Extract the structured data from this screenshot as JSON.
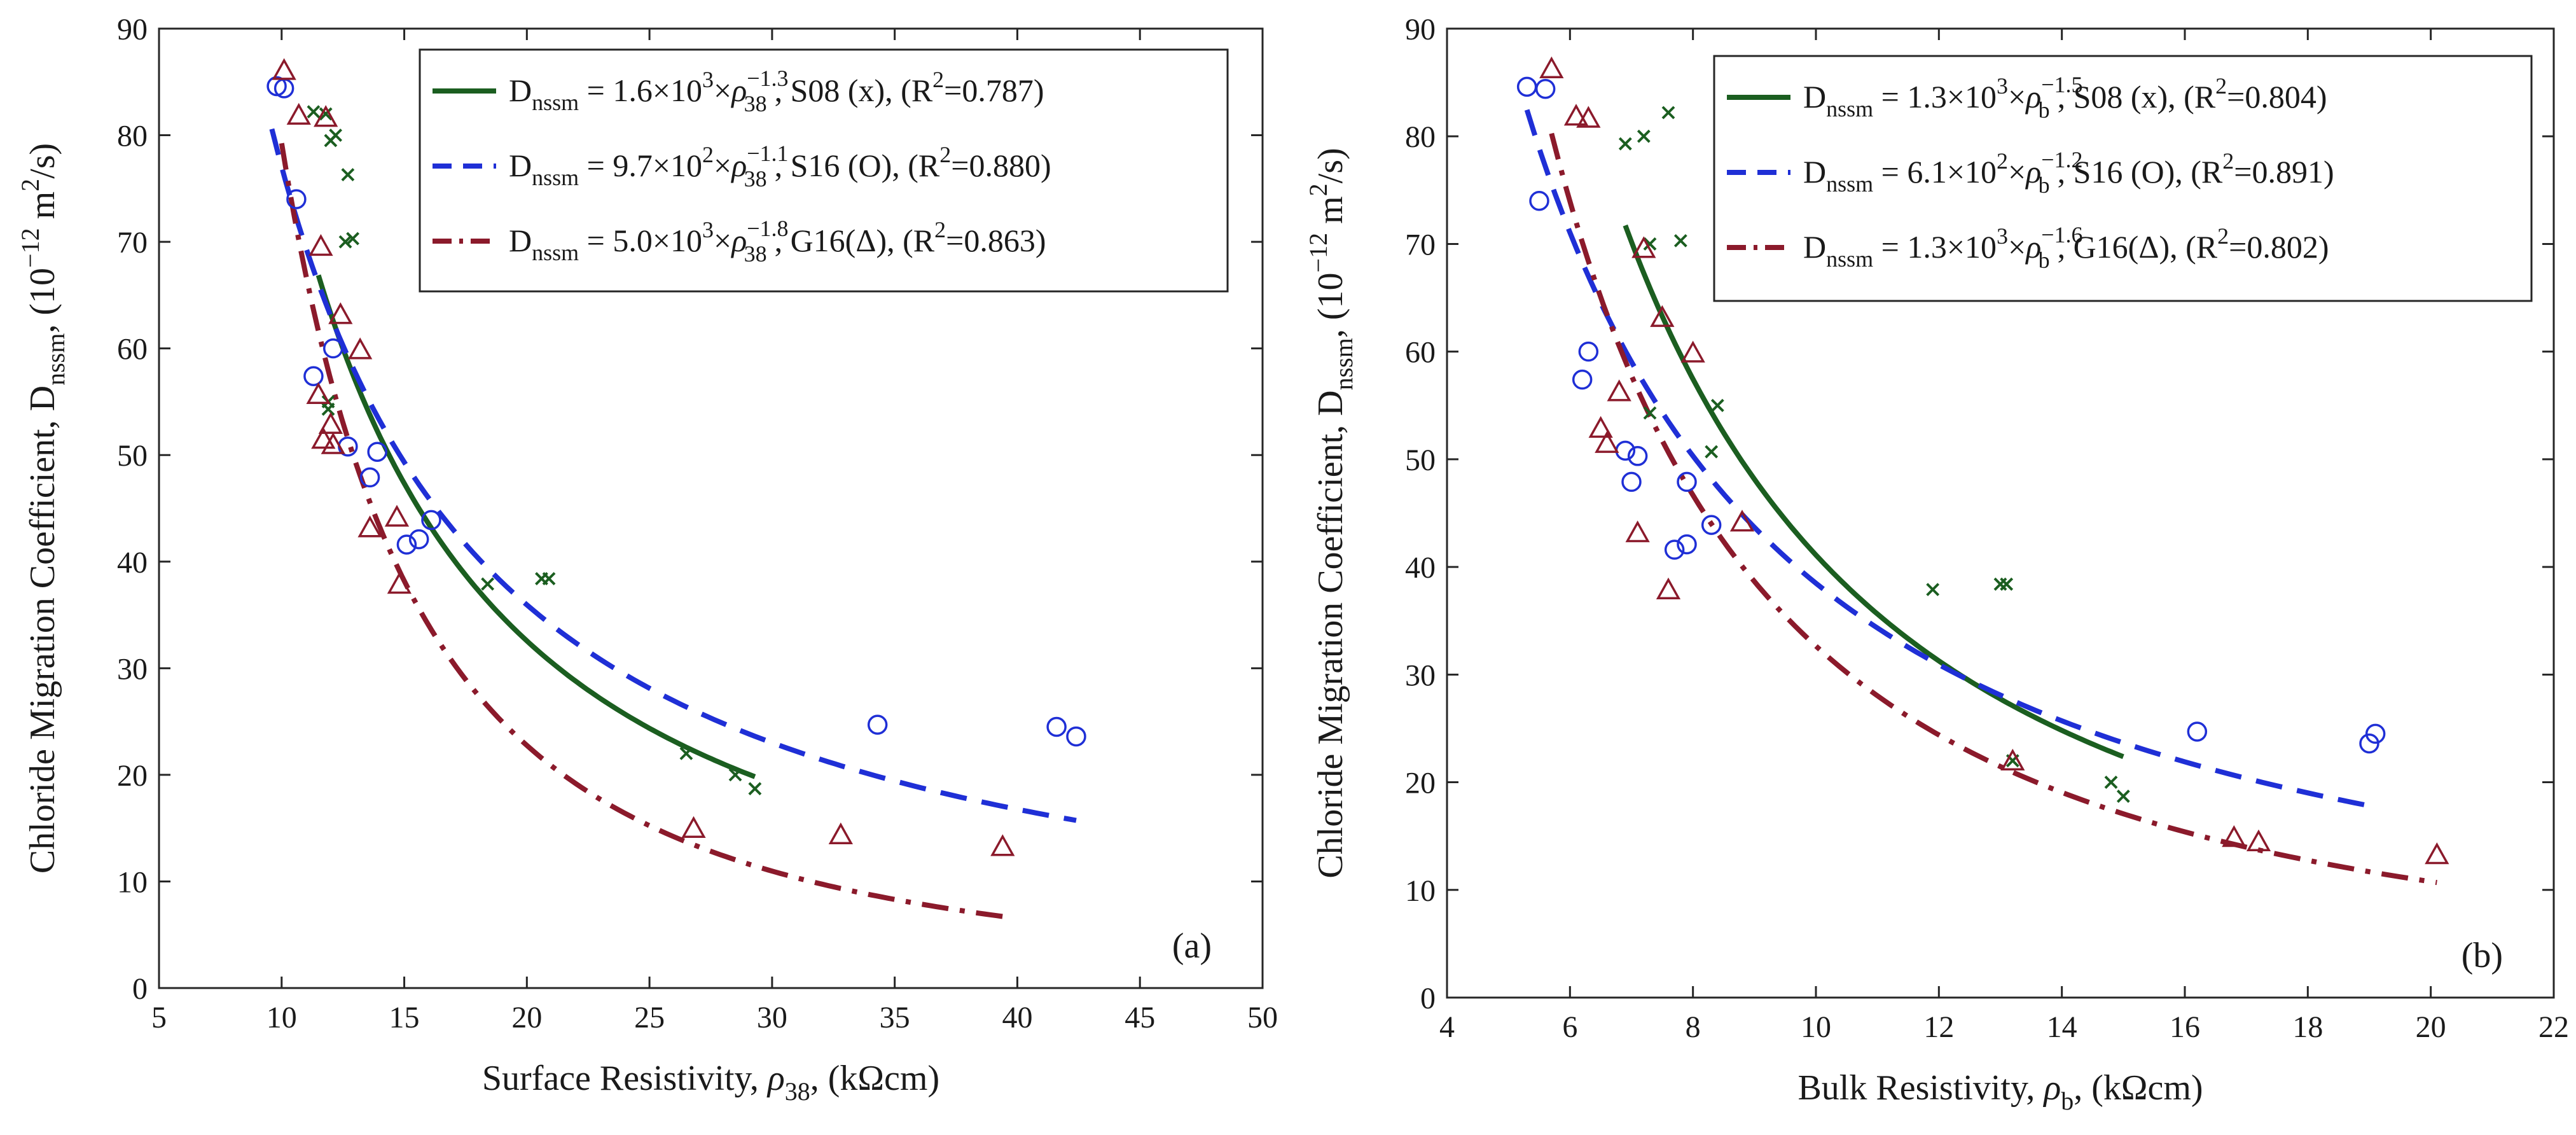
{
  "chart_data": [
    {
      "type": "scatter",
      "panel_label": "(a)",
      "xlabel": {
        "main": "Surface Resistivity, ",
        "sym": "ρ",
        "sub": "38",
        "tail": ", (kΩcm)"
      },
      "ylabel": {
        "main": "Chloride Migration Coefficient, D",
        "sub": "nssm",
        "mid": ", (10",
        "sup": "−12",
        "unit": " m",
        "sup2": "2",
        "tail": "/s)"
      },
      "xlim": [
        5,
        50
      ],
      "ylim": [
        0,
        90
      ],
      "xticks": [
        "5",
        "10",
        "15",
        "20",
        "25",
        "30",
        "35",
        "40",
        "45",
        "50"
      ],
      "yticks": [
        "0",
        "10",
        "20",
        "30",
        "40",
        "50",
        "60",
        "70",
        "80",
        "90"
      ],
      "legend_position": "top-right",
      "series": [
        {
          "name": "S08 (x)",
          "marker": "x",
          "color": "#1b5e20",
          "fit": {
            "a": 1600,
            "b": -1.3,
            "x_range": [
              11.5,
              29.3
            ],
            "style": "solid"
          },
          "legend": {
            "coef": "1.6×10",
            "exp": "3",
            "rest": "×",
            "rho": "ρ",
            "rho_sub": "38",
            "b": "−1.3",
            "label": ", S08 (x),  (R",
            "r2": "=0.787)"
          },
          "points": [
            [
              11.3,
              82.2
            ],
            [
              11.8,
              82.0
            ],
            [
              12.0,
              79.5
            ],
            [
              12.2,
              80.0
            ],
            [
              12.7,
              76.3
            ],
            [
              12.6,
              70.0
            ],
            [
              12.9,
              70.3
            ],
            [
              11.9,
              55.0
            ],
            [
              11.9,
              54.3
            ],
            [
              18.4,
              37.9
            ],
            [
              20.6,
              38.4
            ],
            [
              20.9,
              38.4
            ],
            [
              26.5,
              22.0
            ],
            [
              28.5,
              20.0
            ],
            [
              29.3,
              18.7
            ]
          ]
        },
        {
          "name": "S16 (O)",
          "marker": "o",
          "color": "#1f2fd6",
          "fit": {
            "a": 970,
            "b": -1.1,
            "x_range": [
              9.6,
              42.4
            ],
            "style": "dashed"
          },
          "legend": {
            "coef": "9.7×10",
            "exp": "2",
            "rest": "×",
            "rho": "ρ",
            "rho_sub": "38",
            "b": "−1.1",
            "label": ", S16 (O), (R",
            "r2": "=0.880)"
          },
          "points": [
            [
              9.8,
              84.6
            ],
            [
              10.1,
              84.4
            ],
            [
              10.6,
              74.0
            ],
            [
              11.3,
              57.4
            ],
            [
              12.1,
              60.0
            ],
            [
              12.7,
              50.8
            ],
            [
              13.6,
              47.9
            ],
            [
              13.9,
              50.3
            ],
            [
              15.1,
              41.6
            ],
            [
              15.6,
              42.1
            ],
            [
              16.1,
              43.9
            ],
            [
              34.3,
              24.7
            ],
            [
              41.6,
              24.5
            ],
            [
              42.4,
              23.6
            ]
          ]
        },
        {
          "name": "G16(Δ)",
          "marker": "triangle",
          "color": "#8b1a2b",
          "fit": {
            "a": 5000,
            "b": -1.8,
            "x_range": [
              10.0,
              39.4
            ],
            "style": "dashdot"
          },
          "legend": {
            "coef": "5.0×10",
            "exp": "3",
            "rest": "×",
            "rho": "ρ",
            "rho_sub": "38",
            "b": "−1.8",
            "label": ", G16(Δ), (R",
            "r2": "=0.863)"
          },
          "points": [
            [
              10.1,
              86.0
            ],
            [
              10.7,
              81.8
            ],
            [
              11.8,
              81.6
            ],
            [
              11.6,
              69.5
            ],
            [
              12.4,
              63.1
            ],
            [
              13.2,
              59.8
            ],
            [
              11.5,
              55.6
            ],
            [
              12.0,
              52.8
            ],
            [
              11.7,
              51.4
            ],
            [
              12.1,
              50.9
            ],
            [
              13.6,
              43.1
            ],
            [
              14.7,
              44.1
            ],
            [
              14.8,
              37.8
            ],
            [
              26.8,
              14.9
            ],
            [
              32.8,
              14.3
            ],
            [
              39.4,
              13.2
            ]
          ]
        }
      ]
    },
    {
      "type": "scatter",
      "panel_label": "(b)",
      "xlabel": {
        "main": "Bulk Resistivity, ",
        "sym": "ρ",
        "sub": "b",
        "tail": ", (kΩcm)"
      },
      "ylabel": {
        "main": "Chloride Migration Coefficient, D",
        "sub": "nssm",
        "mid": ", (10",
        "sup": "−12",
        "unit": " m",
        "sup2": "2",
        "tail": "/s)"
      },
      "xlim": [
        4,
        22
      ],
      "ylim": [
        0,
        90
      ],
      "xticks": [
        "4",
        "6",
        "8",
        "10",
        "12",
        "14",
        "16",
        "18",
        "20",
        "22"
      ],
      "yticks": [
        "0",
        "10",
        "20",
        "30",
        "40",
        "50",
        "60",
        "70",
        "80",
        "90"
      ],
      "legend_position": "top-right",
      "series": [
        {
          "name": "S08  (x)",
          "marker": "x",
          "color": "#1b5e20",
          "fit": {
            "a": 1300,
            "b": -1.5,
            "x_range": [
              6.9,
              15.0
            ],
            "style": "solid"
          },
          "legend": {
            "coef": "1.3×10",
            "exp": "3",
            "rest": "×",
            "rho": "ρ",
            "rho_sub": "b",
            "b": "−1.5",
            "label": ", S08  (x), (R",
            "r2": "=0.804)"
          },
          "points": [
            [
              6.9,
              79.3
            ],
            [
              7.2,
              80.0
            ],
            [
              7.6,
              82.2
            ],
            [
              7.3,
              70.0
            ],
            [
              7.8,
              70.3
            ],
            [
              8.4,
              55.0
            ],
            [
              7.3,
              54.3
            ],
            [
              8.3,
              50.7
            ],
            [
              11.9,
              37.9
            ],
            [
              13.0,
              38.4
            ],
            [
              13.1,
              38.4
            ],
            [
              13.2,
              22.0
            ],
            [
              14.8,
              20.0
            ],
            [
              15.0,
              18.7
            ]
          ]
        },
        {
          "name": "S16 (O)",
          "marker": "o",
          "color": "#1f2fd6",
          "fit": {
            "a": 610,
            "b": -1.2,
            "x_range": [
              5.3,
              19.1
            ],
            "style": "dashed"
          },
          "legend": {
            "coef": "6.1×10",
            "exp": "2",
            "rest": "×",
            "rho": "ρ",
            "rho_sub": "b",
            "b": "−1.2",
            "label": ", S16 (O), (R",
            "r2": "=0.891)"
          },
          "points": [
            [
              5.3,
              84.6
            ],
            [
              5.6,
              84.4
            ],
            [
              5.5,
              74.0
            ],
            [
              6.2,
              57.4
            ],
            [
              6.3,
              60.0
            ],
            [
              6.9,
              50.8
            ],
            [
              7.1,
              50.3
            ],
            [
              7.0,
              47.9
            ],
            [
              7.7,
              41.6
            ],
            [
              7.9,
              42.1
            ],
            [
              7.9,
              47.9
            ],
            [
              8.3,
              43.9
            ],
            [
              16.2,
              24.7
            ],
            [
              19.0,
              23.6
            ],
            [
              19.1,
              24.5
            ]
          ]
        },
        {
          "name": "G16(Δ)",
          "marker": "triangle",
          "color": "#8b1a2b",
          "fit": {
            "a": 1300,
            "b": -1.6,
            "x_range": [
              5.7,
              20.1
            ],
            "style": "dashdot"
          },
          "legend": {
            "coef": "1.3×10",
            "exp": "3",
            "rest": "×",
            "rho": "ρ",
            "rho_sub": "b",
            "b": "−1.6",
            "label": ", G16(Δ), (R",
            "r2": "=0.802)"
          },
          "points": [
            [
              5.7,
              86.2
            ],
            [
              6.1,
              81.8
            ],
            [
              6.3,
              81.6
            ],
            [
              7.2,
              69.5
            ],
            [
              7.5,
              63.1
            ],
            [
              8.0,
              59.8
            ],
            [
              6.8,
              56.2
            ],
            [
              6.5,
              52.8
            ],
            [
              6.6,
              51.4
            ],
            [
              7.1,
              43.1
            ],
            [
              7.6,
              37.8
            ],
            [
              8.8,
              44.1
            ],
            [
              13.2,
              21.9
            ],
            [
              16.8,
              14.8
            ],
            [
              17.2,
              14.4
            ],
            [
              20.1,
              13.2
            ]
          ]
        }
      ]
    }
  ]
}
